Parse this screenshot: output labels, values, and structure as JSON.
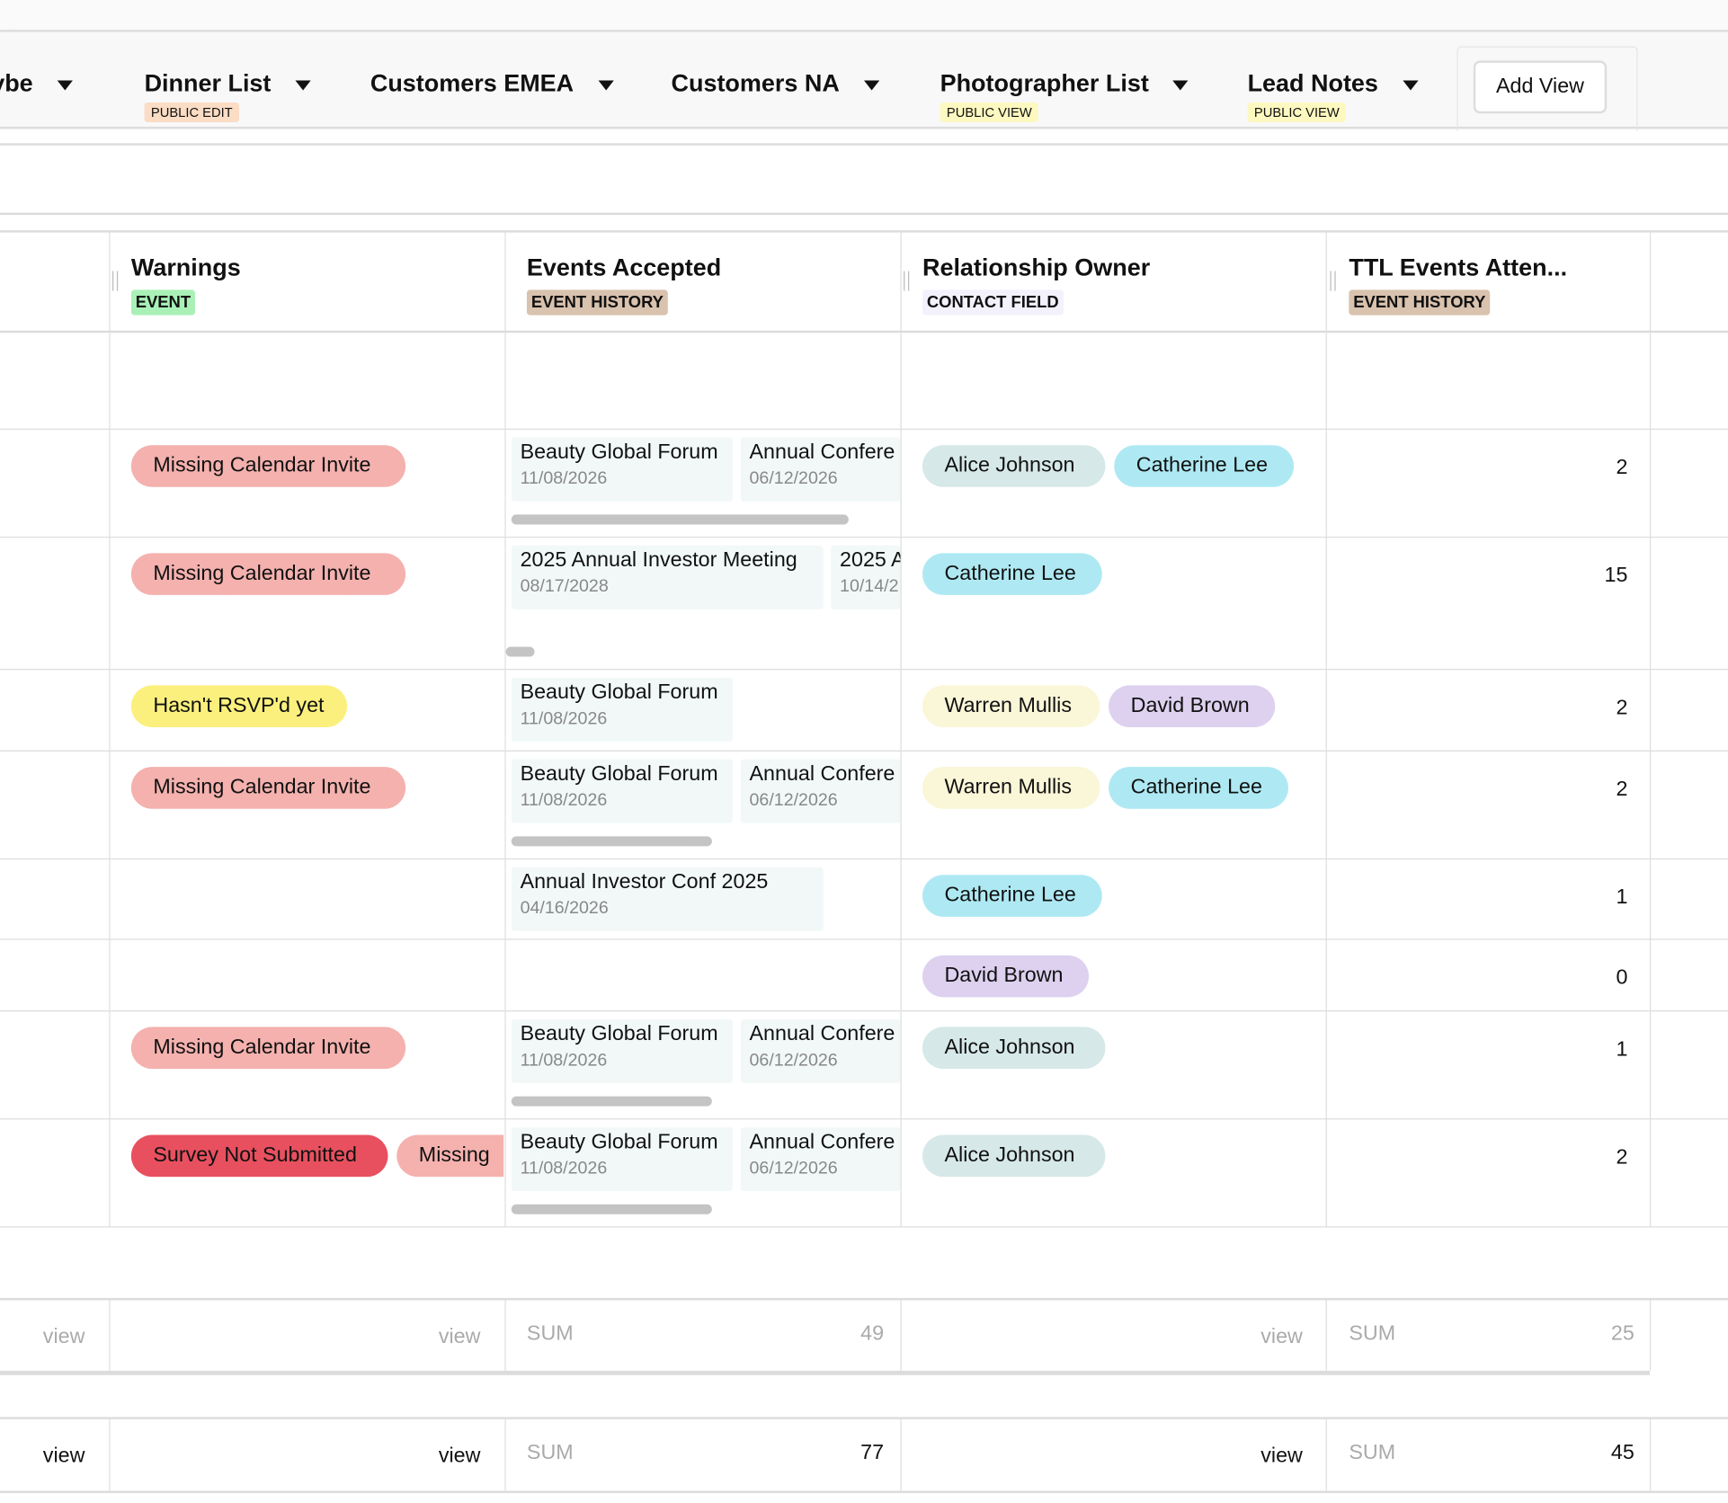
{
  "tabs": [
    {
      "label": "ybe",
      "tag": null
    },
    {
      "label": "Dinner List",
      "tag": "PUBLIC EDIT",
      "tag_color": "#fbdcc4"
    },
    {
      "label": "Customers EMEA",
      "tag": null
    },
    {
      "label": "Customers NA",
      "tag": null
    },
    {
      "label": "Photographer List",
      "tag": "PUBLIC VIEW",
      "tag_color": "#fdf8c0"
    },
    {
      "label": "Lead Notes",
      "tag": "PUBLIC VIEW",
      "tag_color": "#fdf8c0"
    }
  ],
  "add_view_label": "Add View",
  "columns": [
    {
      "title": "Warnings",
      "tag": "EVENT",
      "tag_color": "#a9f0b7"
    },
    {
      "title": "Events Accepted",
      "tag": "EVENT HISTORY",
      "tag_color": "#d9c2ae"
    },
    {
      "title": "Relationship Owner",
      "tag": "CONTACT FIELD",
      "tag_color": "#f3f1fc"
    },
    {
      "title": "TTL Events Atten...",
      "tag": "EVENT HISTORY",
      "tag_color": "#d9c2ae"
    }
  ],
  "add_column_icon": "plus-icon",
  "warning_colors": {
    "Missing Calendar Invite": "#f4b1ae",
    "Hasn't RSVP'd yet": "#fbf07d",
    "Survey Not Submitted": "#e8505f",
    "Missing": "#f4b1ae"
  },
  "owner_colors": {
    "Alice Johnson": "#d6e8e8",
    "Catherine Lee": "#aee9f3",
    "Warren Mullis": "#faf6d8",
    "David Brown": "#ddd1ef"
  },
  "rows": [
    {
      "warnings": [
        "Missing Calendar Invite"
      ],
      "events": [
        {
          "name": "Beauty Global Forum",
          "date": "11/08/2026"
        },
        {
          "name": "Annual Confere",
          "date": "06/12/2026"
        }
      ],
      "owners": [
        "Alice Johnson",
        "Catherine Lee"
      ],
      "ttl": "2"
    },
    {
      "warnings": [
        "Missing Calendar Invite"
      ],
      "events": [
        {
          "name": "2025 Annual Investor Meeting",
          "date": "08/17/2028"
        },
        {
          "name": "2025 A",
          "date": "10/14/2"
        }
      ],
      "owners": [
        "Catherine Lee"
      ],
      "ttl": "15"
    },
    {
      "warnings": [
        "Hasn't RSVP'd yet"
      ],
      "events": [
        {
          "name": "Beauty Global Forum",
          "date": "11/08/2026"
        }
      ],
      "owners": [
        "Warren Mullis",
        "David Brown"
      ],
      "ttl": "2"
    },
    {
      "warnings": [
        "Missing Calendar Invite"
      ],
      "events": [
        {
          "name": "Beauty Global Forum",
          "date": "11/08/2026"
        },
        {
          "name": "Annual Confere",
          "date": "06/12/2026"
        }
      ],
      "owners": [
        "Warren Mullis",
        "Catherine Lee"
      ],
      "ttl": "2"
    },
    {
      "warnings": [],
      "events": [
        {
          "name": "Annual Investor Conf 2025",
          "date": "04/16/2026"
        }
      ],
      "owners": [
        "Catherine Lee"
      ],
      "ttl": "1"
    },
    {
      "warnings": [],
      "events": [],
      "owners": [
        "David Brown"
      ],
      "ttl": "0"
    },
    {
      "warnings": [
        "Missing Calendar Invite"
      ],
      "events": [
        {
          "name": "Beauty Global Forum",
          "date": "11/08/2026"
        },
        {
          "name": "Annual Confere",
          "date": "06/12/2026"
        }
      ],
      "owners": [
        "Alice Johnson"
      ],
      "ttl": "1"
    },
    {
      "warnings": [
        "Survey Not Submitted",
        "Missing"
      ],
      "events": [
        {
          "name": "Beauty Global Forum",
          "date": "11/08/2026"
        },
        {
          "name": "Annual Confere",
          "date": "06/12/2026"
        }
      ],
      "owners": [
        "Alice Johnson"
      ],
      "ttl": "2"
    }
  ],
  "summary_rows": [
    {
      "view": "view",
      "sum_label": "SUM",
      "events_sum": "49",
      "ttl_sum": "25",
      "muted": true
    },
    {
      "view": "view",
      "sum_label": "SUM",
      "events_sum": "77",
      "ttl_sum": "45",
      "muted": false
    }
  ]
}
